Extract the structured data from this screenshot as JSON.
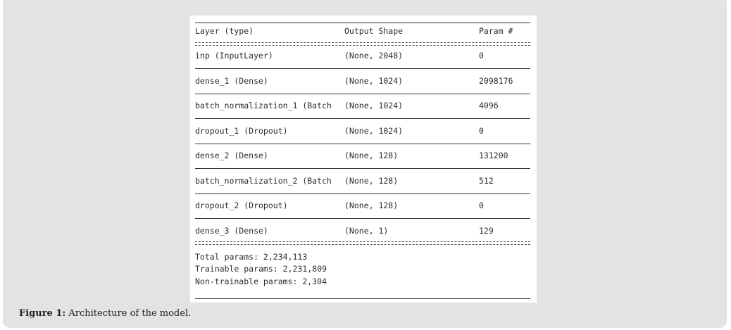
{
  "table": {
    "headers": [
      "Layer (type)",
      "Output Shape",
      "Param #"
    ],
    "rows": [
      {
        "layer": "inp (InputLayer)",
        "shape": "(None, 2048)",
        "params": "0"
      },
      {
        "layer": "dense_1 (Dense)",
        "shape": "(None, 1024)",
        "params": "2098176"
      },
      {
        "layer": "batch_normalization_1 (Batch",
        "shape": "(None, 1024)",
        "params": "4096"
      },
      {
        "layer": "dropout_1 (Dropout)",
        "shape": "(None, 1024)",
        "params": "0"
      },
      {
        "layer": "dense_2 (Dense)",
        "shape": "(None, 128)",
        "params": "131200"
      },
      {
        "layer": "batch_normalization_2 (Batch",
        "shape": "(None, 128)",
        "params": "512"
      },
      {
        "layer": "dropout_2 (Dropout)",
        "shape": "(None, 128)",
        "params": "0"
      },
      {
        "layer": "dense_3 (Dense)",
        "shape": "(None, 1)",
        "params": "129"
      }
    ],
    "totals": [
      "Total params: 2,234,113",
      "Trainable params: 2,231,809",
      "Non-trainable params: 2,304"
    ]
  },
  "caption": {
    "label": "Figure 1:",
    "text": " Architecture of the model."
  }
}
